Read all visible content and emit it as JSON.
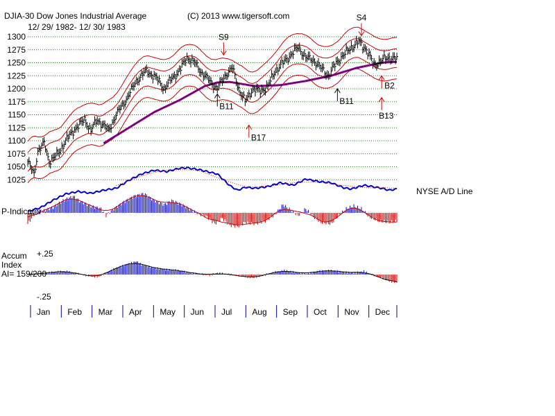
{
  "header": {
    "title": "DJIA-30  Dow Jones Industrial Average",
    "copyright": "(C) 2013 www.tigersoft.com",
    "date_range": "12/ 29/ 1982- 12/ 30/ 1983"
  },
  "colors": {
    "price_bars": "#000000",
    "bands": "#cc0000",
    "moving_average": "#800080",
    "ad_line": "#0000cc",
    "positive": "#0000cc",
    "negative": "#cc0000",
    "grid": "#008000"
  },
  "labels": {
    "ad_line": "NYSE A/D Line",
    "p_indicator": "P-Indicator",
    "accum_line1": "Accum",
    "accum_line2": "Index",
    "accum_line3": "AI= 159/200",
    "accum_top": "+.25",
    "accum_bottom": "-.25"
  },
  "chart_data": {
    "type": "line",
    "title": "DJIA-30 Dow Jones Industrial Average",
    "subtitle": "12/ 29/ 1982- 12/ 30/ 1983",
    "y_ticks": [
      1300,
      1275,
      1250,
      1225,
      1200,
      1175,
      1150,
      1125,
      1100,
      1075,
      1050,
      1025
    ],
    "ylim": [
      1010,
      1305
    ],
    "months": [
      "Jan",
      "Feb",
      "Mar",
      "Apr",
      "May",
      "Jun",
      "Jul",
      "Aug",
      "Sep",
      "Oct",
      "Nov",
      "Dec"
    ],
    "price_anchors": [
      [
        0,
        1060
      ],
      [
        5,
        1035
      ],
      [
        8,
        1080
      ],
      [
        13,
        1095
      ],
      [
        17,
        1060
      ],
      [
        24,
        1075
      ],
      [
        30,
        1100
      ],
      [
        38,
        1125
      ],
      [
        45,
        1140
      ],
      [
        50,
        1120
      ],
      [
        55,
        1140
      ],
      [
        60,
        1130
      ],
      [
        64,
        1120
      ],
      [
        70,
        1150
      ],
      [
        78,
        1180
      ],
      [
        86,
        1215
      ],
      [
        94,
        1235
      ],
      [
        102,
        1220
      ],
      [
        108,
        1200
      ],
      [
        114,
        1220
      ],
      [
        120,
        1235
      ],
      [
        126,
        1260
      ],
      [
        132,
        1250
      ],
      [
        138,
        1230
      ],
      [
        144,
        1215
      ],
      [
        150,
        1200
      ],
      [
        156,
        1225
      ],
      [
        162,
        1240
      ],
      [
        167,
        1200
      ],
      [
        172,
        1175
      ],
      [
        178,
        1200
      ],
      [
        184,
        1195
      ],
      [
        190,
        1205
      ],
      [
        196,
        1235
      ],
      [
        202,
        1250
      ],
      [
        208,
        1265
      ],
      [
        214,
        1280
      ],
      [
        220,
        1260
      ],
      [
        226,
        1255
      ],
      [
        232,
        1240
      ],
      [
        238,
        1225
      ],
      [
        244,
        1250
      ],
      [
        250,
        1265
      ],
      [
        256,
        1280
      ],
      [
        262,
        1290
      ],
      [
        268,
        1275
      ],
      [
        274,
        1245
      ],
      [
        280,
        1255
      ],
      [
        286,
        1260
      ],
      [
        292,
        1258
      ]
    ],
    "ma_anchors": [
      [
        60,
        1095
      ],
      [
        80,
        1125
      ],
      [
        100,
        1155
      ],
      [
        120,
        1178
      ],
      [
        140,
        1205
      ],
      [
        150,
        1212
      ],
      [
        160,
        1213
      ],
      [
        180,
        1205
      ],
      [
        200,
        1207
      ],
      [
        220,
        1215
      ],
      [
        240,
        1225
      ],
      [
        260,
        1240
      ],
      [
        280,
        1250
      ],
      [
        292,
        1252
      ]
    ],
    "ad_anchors": [
      [
        0,
        575
      ],
      [
        10,
        590
      ],
      [
        20,
        620
      ],
      [
        30,
        645
      ],
      [
        40,
        655
      ],
      [
        50,
        648
      ],
      [
        60,
        660
      ],
      [
        70,
        668
      ],
      [
        80,
        700
      ],
      [
        90,
        725
      ],
      [
        100,
        740
      ],
      [
        110,
        735
      ],
      [
        120,
        748
      ],
      [
        126,
        750
      ],
      [
        136,
        742
      ],
      [
        146,
        730
      ],
      [
        150,
        725
      ],
      [
        160,
        678
      ],
      [
        166,
        660
      ],
      [
        172,
        672
      ],
      [
        180,
        668
      ],
      [
        190,
        675
      ],
      [
        200,
        690
      ],
      [
        210,
        680
      ],
      [
        220,
        705
      ],
      [
        230,
        695
      ],
      [
        240,
        690
      ],
      [
        250,
        670
      ],
      [
        256,
        665
      ],
      [
        266,
        680
      ],
      [
        272,
        675
      ],
      [
        280,
        668
      ],
      [
        286,
        660
      ],
      [
        292,
        665
      ]
    ],
    "p_indicator_anchors": [
      [
        0,
        -40
      ],
      [
        6,
        0
      ],
      [
        14,
        10
      ],
      [
        20,
        20
      ],
      [
        28,
        45
      ],
      [
        36,
        60
      ],
      [
        42,
        40
      ],
      [
        50,
        25
      ],
      [
        58,
        15
      ],
      [
        62,
        -10
      ],
      [
        68,
        15
      ],
      [
        76,
        40
      ],
      [
        84,
        60
      ],
      [
        92,
        70
      ],
      [
        100,
        45
      ],
      [
        108,
        30
      ],
      [
        114,
        45
      ],
      [
        122,
        30
      ],
      [
        130,
        10
      ],
      [
        136,
        -5
      ],
      [
        142,
        -15
      ],
      [
        148,
        -40
      ],
      [
        154,
        -20
      ],
      [
        160,
        -45
      ],
      [
        166,
        -50
      ],
      [
        172,
        -35
      ],
      [
        180,
        -40
      ],
      [
        188,
        -30
      ],
      [
        196,
        -5
      ],
      [
        202,
        30
      ],
      [
        208,
        10
      ],
      [
        214,
        -10
      ],
      [
        220,
        15
      ],
      [
        226,
        -15
      ],
      [
        232,
        -35
      ],
      [
        240,
        -40
      ],
      [
        246,
        -10
      ],
      [
        252,
        15
      ],
      [
        258,
        25
      ],
      [
        264,
        15
      ],
      [
        270,
        -15
      ],
      [
        278,
        -30
      ],
      [
        286,
        -35
      ],
      [
        292,
        -30
      ]
    ],
    "accum_anchors": [
      [
        0,
        0
      ],
      [
        10,
        0.01
      ],
      [
        20,
        0.03
      ],
      [
        30,
        0.04
      ],
      [
        40,
        0.01
      ],
      [
        50,
        -0.02
      ],
      [
        56,
        -0.03
      ],
      [
        62,
        0.02
      ],
      [
        70,
        0.08
      ],
      [
        80,
        0.13
      ],
      [
        86,
        0.16
      ],
      [
        90,
        0.12
      ],
      [
        100,
        0.08
      ],
      [
        110,
        0.06
      ],
      [
        120,
        0.05
      ],
      [
        128,
        0.02
      ],
      [
        136,
        0.01
      ],
      [
        144,
        -0.01
      ],
      [
        150,
        0.02
      ],
      [
        160,
        0.0
      ],
      [
        170,
        -0.02
      ],
      [
        178,
        -0.04
      ],
      [
        186,
        -0.01
      ],
      [
        196,
        0.03
      ],
      [
        204,
        0.05
      ],
      [
        210,
        0.03
      ],
      [
        220,
        0.01
      ],
      [
        230,
        0.04
      ],
      [
        240,
        0.05
      ],
      [
        250,
        0.03
      ],
      [
        258,
        0.02
      ],
      [
        266,
        0.04
      ],
      [
        272,
        0.0
      ],
      [
        280,
        -0.04
      ],
      [
        286,
        -0.08
      ],
      [
        292,
        -0.1
      ]
    ],
    "signals": [
      {
        "label": "S9",
        "day": 155,
        "direction": "down",
        "anchor_value": 1257
      },
      {
        "label": "S4",
        "day": 264,
        "direction": "down",
        "anchor_value": 1294
      },
      {
        "label": "B11",
        "day": 150,
        "direction": "up",
        "anchor_value": 1190,
        "label_below": true
      },
      {
        "label": "B17",
        "day": 175,
        "direction": "up",
        "anchor_value": 1130,
        "label_below": true
      },
      {
        "label": "B11",
        "day": 245,
        "direction": "up",
        "anchor_value": 1200,
        "label_below": true
      },
      {
        "label": "B2",
        "day": 280,
        "direction": "up",
        "anchor_value": 1225,
        "label_right": true
      },
      {
        "label": "B13",
        "day": 280,
        "direction": "up",
        "anchor_value": 1183,
        "label_below_offset": true
      }
    ]
  }
}
